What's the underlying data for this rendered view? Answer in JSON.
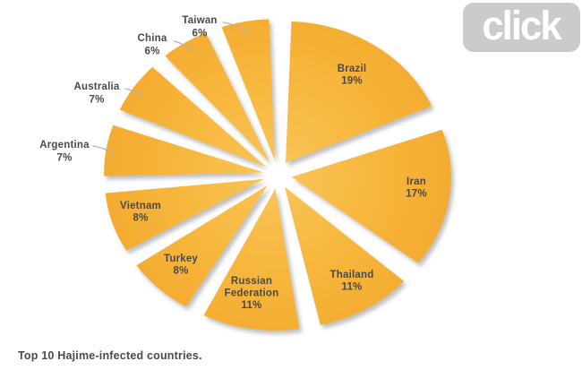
{
  "logo": {
    "text": "click",
    "bg_color": "#cbcbcb",
    "text_color": "#ffffff"
  },
  "caption": "Top 10 Hajime-infected countries.",
  "colors": {
    "slice_fill": "#F7B73D",
    "slice_fill_inner": "#FAC55A",
    "slice_fill_outer": "#F3AB2F",
    "label_text": "#4a4a4a",
    "leader_line": "#b2b2b2",
    "shadow": "#8a8a8a"
  },
  "chart_data": {
    "type": "pie",
    "title": "Top 10 Hajime-infected countries.",
    "unit": "%",
    "categories": [
      "Brazil",
      "Iran",
      "Thailand",
      "Russian Federation",
      "Turkey",
      "Vietnam",
      "Argentina",
      "Australia",
      "China",
      "Taiwan"
    ],
    "values": [
      19,
      17,
      11,
      11,
      8,
      8,
      7,
      7,
      6,
      6
    ],
    "label_format": "{name} {value}%",
    "style": "exploded, all slices same amber color, labels inside large slices, outside with leader lines for slices under 8%",
    "start_angle_deg": 0,
    "direction": "clockwise",
    "legend": "none",
    "grid": "off"
  }
}
